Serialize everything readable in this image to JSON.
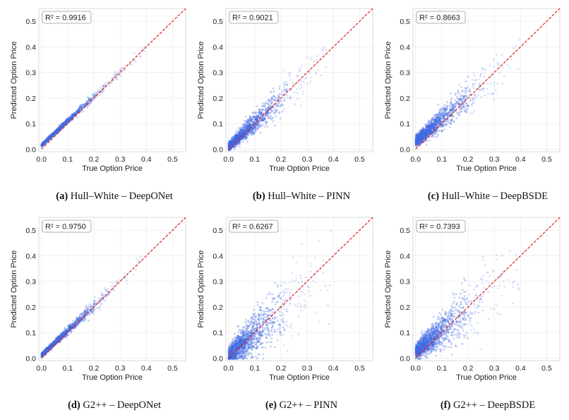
{
  "chart_data": [
    {
      "type": "scatter",
      "panel_label": "(a)",
      "caption": "Hull–White – DeepONet",
      "r2_label": "R² = 0.9916",
      "r2": 0.9916,
      "xlabel": "True Option Price",
      "ylabel": "Predicted Option Price",
      "xticks": [
        "0.0",
        "0.1",
        "0.2",
        "0.3",
        "0.4",
        "0.5"
      ],
      "yticks": [
        "0.0",
        "0.1",
        "0.2",
        "0.3",
        "0.4",
        "0.5"
      ],
      "xlim": [
        -0.01,
        0.55
      ],
      "ylim": [
        -0.01,
        0.55
      ],
      "x_max": 0.48,
      "noise": 0.009,
      "bias": 0.015,
      "spread": 0.0,
      "reference_line": "y = x",
      "color": "#4169e1",
      "ref_color": "#e02020"
    },
    {
      "type": "scatter",
      "panel_label": "(b)",
      "caption": "Hull–White – PINN",
      "r2_label": "R² = 0.9021",
      "r2": 0.9021,
      "xlabel": "True Option Price",
      "ylabel": "Predicted Option Price",
      "xticks": [
        "0.0",
        "0.1",
        "0.2",
        "0.3",
        "0.4",
        "0.5"
      ],
      "yticks": [
        "0.0",
        "0.1",
        "0.2",
        "0.3",
        "0.4",
        "0.5"
      ],
      "xlim": [
        -0.01,
        0.55
      ],
      "ylim": [
        -0.01,
        0.55
      ],
      "x_max": 0.52,
      "noise": 0.03,
      "bias": 0.01,
      "spread": 0.15,
      "reference_line": "y = x",
      "color": "#4169e1",
      "ref_color": "#e02020"
    },
    {
      "type": "scatter",
      "panel_label": "(c)",
      "caption": "Hull–White – DeepBSDE",
      "r2_label": "R² = 0.8663",
      "r2": 0.8663,
      "xlabel": "True Option Price",
      "ylabel": "Predicted Option Price",
      "xticks": [
        "0.0",
        "0.1",
        "0.2",
        "0.3",
        "0.4",
        "0.5"
      ],
      "yticks": [
        "0.0",
        "0.1",
        "0.2",
        "0.3",
        "0.4",
        "0.5"
      ],
      "xlim": [
        -0.01,
        0.55
      ],
      "ylim": [
        -0.01,
        0.55
      ],
      "x_max": 0.48,
      "noise": 0.035,
      "bias": 0.03,
      "spread": 0.1,
      "reference_line": "y = x",
      "color": "#4169e1",
      "ref_color": "#e02020"
    },
    {
      "type": "scatter",
      "panel_label": "(d)",
      "caption": "G2++ – DeepONet",
      "r2_label": "R² = 0.9750",
      "r2": 0.975,
      "xlabel": "True Option Price",
      "ylabel": "Predicted Option Price",
      "xticks": [
        "0.0",
        "0.1",
        "0.2",
        "0.3",
        "0.4",
        "0.5"
      ],
      "yticks": [
        "0.0",
        "0.1",
        "0.2",
        "0.3",
        "0.4",
        "0.5"
      ],
      "xlim": [
        -0.01,
        0.55
      ],
      "ylim": [
        -0.01,
        0.55
      ],
      "x_max": 0.5,
      "noise": 0.013,
      "bias": 0.012,
      "spread": 0.05,
      "reference_line": "y = x",
      "color": "#4169e1",
      "ref_color": "#e02020"
    },
    {
      "type": "scatter",
      "panel_label": "(e)",
      "caption": "G2++ – PINN",
      "r2_label": "R² = 0.6267",
      "r2": 0.6267,
      "xlabel": "True Option Price",
      "ylabel": "Predicted Option Price",
      "xticks": [
        "0.0",
        "0.1",
        "0.2",
        "0.3",
        "0.4",
        "0.5"
      ],
      "yticks": [
        "0.0",
        "0.1",
        "0.2",
        "0.3",
        "0.4",
        "0.5"
      ],
      "xlim": [
        -0.01,
        0.55
      ],
      "ylim": [
        -0.01,
        0.55
      ],
      "x_max": 0.52,
      "noise": 0.06,
      "bias": 0.01,
      "spread": 0.35,
      "reference_line": "y = x",
      "color": "#4169e1",
      "ref_color": "#e02020"
    },
    {
      "type": "scatter",
      "panel_label": "(f)",
      "caption": "G2++ – DeepBSDE",
      "r2_label": "R² = 0.7393",
      "r2": 0.7393,
      "xlabel": "True Option Price",
      "ylabel": "Predicted Option Price",
      "xticks": [
        "0.0",
        "0.1",
        "0.2",
        "0.3",
        "0.4",
        "0.5"
      ],
      "yticks": [
        "0.0",
        "0.1",
        "0.2",
        "0.3",
        "0.4",
        "0.5"
      ],
      "xlim": [
        -0.01,
        0.55
      ],
      "ylim": [
        -0.01,
        0.55
      ],
      "x_max": 0.52,
      "noise": 0.05,
      "bias": 0.025,
      "spread": 0.3,
      "reference_line": "y = x",
      "color": "#4169e1",
      "ref_color": "#e02020"
    }
  ]
}
